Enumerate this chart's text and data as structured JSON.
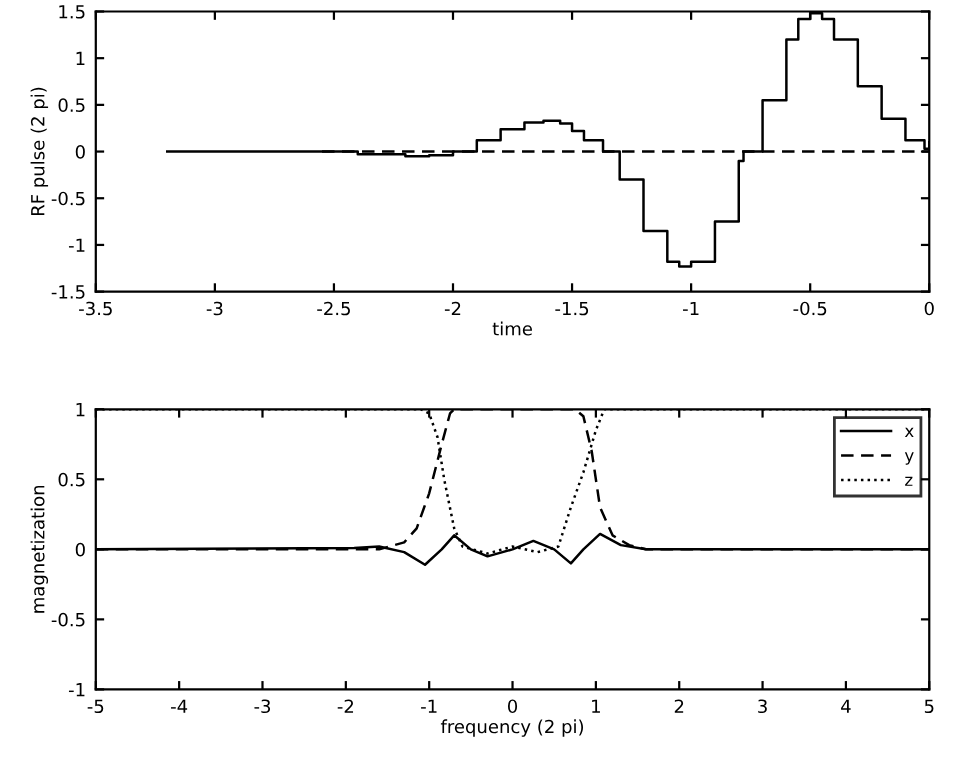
{
  "chart_data": [
    {
      "type": "step",
      "xlabel": "time",
      "ylabel": "RF pulse (2 pi)",
      "xlim": [
        -3.5,
        0
      ],
      "ylim": [
        -1.5,
        1.5
      ],
      "xticks": [
        -3.5,
        -3,
        -2.5,
        -2,
        -1.5,
        -1,
        -0.5,
        0
      ],
      "yticks": [
        -1.5,
        -1,
        -0.5,
        0,
        0.5,
        1,
        1.5
      ],
      "grid": false,
      "legend": false,
      "series": [
        {
          "color": "#000000",
          "line_style": "solid",
          "x": [
            -3.2,
            -2.55,
            -2.4,
            -2.2,
            -2.1,
            -2.0,
            -1.9,
            -1.8,
            -1.7,
            -1.62,
            -1.55,
            -1.5,
            -1.45,
            -1.37,
            -1.3,
            -1.2,
            -1.1,
            -1.05,
            -1.0,
            -0.9,
            -0.8,
            -0.78,
            -0.7,
            -0.6,
            -0.55,
            -0.5,
            -0.45,
            -0.4,
            -0.3,
            -0.2,
            -0.1,
            -0.02,
            0
          ],
          "values": [
            0,
            0,
            -0.03,
            -0.05,
            -0.04,
            0,
            0.12,
            0.24,
            0.31,
            0.33,
            0.3,
            0.22,
            0.12,
            0,
            -0.3,
            -0.85,
            -1.18,
            -1.23,
            -1.18,
            -0.75,
            -0.1,
            0,
            0.55,
            1.2,
            1.42,
            1.48,
            1.42,
            1.2,
            0.7,
            0.35,
            0.12,
            0.03,
            0.1
          ]
        },
        {
          "type": "line",
          "color": "#000000",
          "line_style": "dashed",
          "x": [
            -2.55,
            0
          ],
          "values": [
            0,
            0
          ]
        }
      ]
    },
    {
      "type": "line",
      "xlabel": "frequency (2 pi)",
      "ylabel": "magnetization",
      "xlim": [
        -5,
        5
      ],
      "ylim": [
        -1,
        1
      ],
      "xticks": [
        -5,
        -4,
        -3,
        -2,
        -1,
        0,
        1,
        2,
        3,
        4,
        5
      ],
      "yticks": [
        -1,
        -0.5,
        0,
        0.5,
        1
      ],
      "grid": false,
      "legend": "top right",
      "series": [
        {
          "name": "x",
          "color": "#000000",
          "line_style": "solid",
          "x": [
            -5,
            -1.9,
            -1.6,
            -1.3,
            -1.05,
            -0.85,
            -0.7,
            -0.5,
            -0.3,
            0,
            0.25,
            0.5,
            0.7,
            0.85,
            1.05,
            1.3,
            1.6,
            2.1,
            5
          ],
          "values": [
            0,
            0.01,
            0.02,
            -0.02,
            -0.11,
            0,
            0.1,
            0,
            -0.05,
            0,
            0.06,
            0,
            -0.1,
            0,
            0.11,
            0.03,
            0,
            0,
            0
          ]
        },
        {
          "name": "y",
          "color": "#000000",
          "line_style": "dashed",
          "x": [
            -5,
            -1.6,
            -1.3,
            -1.15,
            -1.0,
            -0.85,
            -0.75,
            -0.7,
            0.75,
            0.85,
            0.95,
            1.05,
            1.2,
            1.4,
            1.6,
            5
          ],
          "values": [
            0,
            0,
            0.05,
            0.15,
            0.4,
            0.75,
            0.97,
            1,
            1,
            0.95,
            0.7,
            0.3,
            0.1,
            0.03,
            0,
            0
          ]
        },
        {
          "name": "z",
          "color": "#000000",
          "line_style": "dotted",
          "x": [
            -5,
            -1.1,
            -1.0,
            -0.9,
            -0.82,
            -0.7,
            -0.6,
            -0.3,
            0,
            0.3,
            0.55,
            0.7,
            0.85,
            1.0,
            1.1,
            5
          ],
          "values": [
            1,
            1,
            0.97,
            0.8,
            0.5,
            0.15,
            0.02,
            -0.03,
            0.02,
            -0.02,
            0.02,
            0.3,
            0.55,
            0.85,
            1,
            1
          ]
        }
      ]
    }
  ]
}
